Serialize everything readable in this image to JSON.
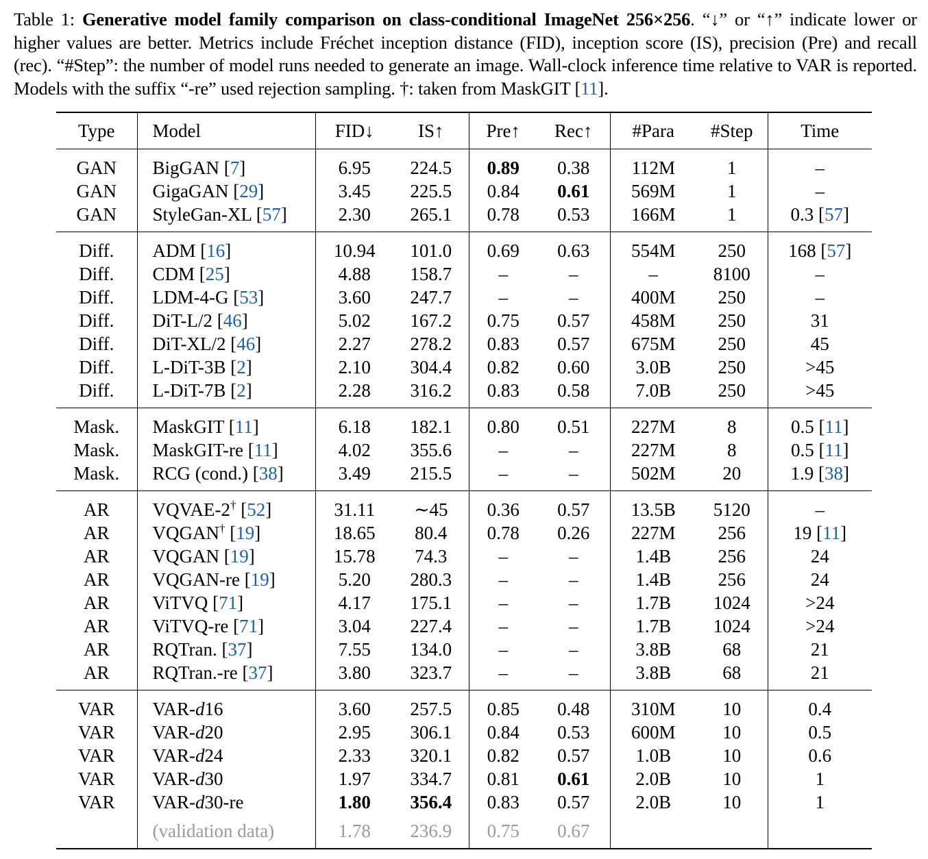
{
  "caption": {
    "label": "Table 1:",
    "bold_title": "Generative model family comparison on class-conditional ImageNet 256×256",
    "text_1": ". “↓” or “↑” indicate lower or higher values are better. Metrics include Fréchet inception distance (FID), inception score (IS), precision (Pre) and recall (rec). “#Step”: the number of model runs needed to generate an image. Wall-clock inference time relative to VAR is reported. Models with the suffix “-re” used rejection sampling. †: taken from MaskGIT [",
    "ref": "11",
    "text_2": "]."
  },
  "table": {
    "headers": [
      "Type",
      "Model",
      "FID↓",
      "IS↑",
      "Pre↑",
      "Rec↑",
      "#Para",
      "#Step",
      "Time"
    ],
    "groups": [
      {
        "rows": [
          {
            "type": "GAN",
            "model": "BigGAN",
            "ref": "7",
            "fid": "6.95",
            "is": "224.5",
            "pre": "0.89",
            "rec": "0.38",
            "para": "112M",
            "step": "1",
            "time": "–",
            "time_ref": ""
          },
          {
            "type": "GAN",
            "model": "GigaGAN",
            "ref": "29",
            "fid": "3.45",
            "is": "225.5",
            "pre": "0.84",
            "rec": "0.61",
            "para": "569M",
            "step": "1",
            "time": "–",
            "time_ref": ""
          },
          {
            "type": "GAN",
            "model": "StyleGan-XL",
            "ref": "57",
            "fid": "2.30",
            "is": "265.1",
            "pre": "0.78",
            "rec": "0.53",
            "para": "166M",
            "step": "1",
            "time": "0.3",
            "time_ref": "57"
          }
        ]
      },
      {
        "rows": [
          {
            "type": "Diff.",
            "model": "ADM",
            "ref": "16",
            "fid": "10.94",
            "is": "101.0",
            "pre": "0.69",
            "rec": "0.63",
            "para": "554M",
            "step": "250",
            "time": "168",
            "time_ref": "57"
          },
          {
            "type": "Diff.",
            "model": "CDM",
            "ref": "25",
            "fid": "4.88",
            "is": "158.7",
            "pre": "–",
            "rec": "–",
            "para": "–",
            "step": "8100",
            "time": "–",
            "time_ref": ""
          },
          {
            "type": "Diff.",
            "model": "LDM-4-G",
            "ref": "53",
            "fid": "3.60",
            "is": "247.7",
            "pre": "–",
            "rec": "–",
            "para": "400M",
            "step": "250",
            "time": "–",
            "time_ref": ""
          },
          {
            "type": "Diff.",
            "model": "DiT-L/2",
            "ref": "46",
            "fid": "5.02",
            "is": "167.2",
            "pre": "0.75",
            "rec": "0.57",
            "para": "458M",
            "step": "250",
            "time": "31",
            "time_ref": ""
          },
          {
            "type": "Diff.",
            "model": "DiT-XL/2",
            "ref": "46",
            "fid": "2.27",
            "is": "278.2",
            "pre": "0.83",
            "rec": "0.57",
            "para": "675M",
            "step": "250",
            "time": "45",
            "time_ref": ""
          },
          {
            "type": "Diff.",
            "model": "L-DiT-3B",
            "ref": "2",
            "fid": "2.10",
            "is": "304.4",
            "pre": "0.82",
            "rec": "0.60",
            "para": "3.0B",
            "step": "250",
            "time": ">45",
            "time_ref": ""
          },
          {
            "type": "Diff.",
            "model": "L-DiT-7B",
            "ref": "2",
            "fid": "2.28",
            "is": "316.2",
            "pre": "0.83",
            "rec": "0.58",
            "para": "7.0B",
            "step": "250",
            "time": ">45",
            "time_ref": ""
          }
        ]
      },
      {
        "rows": [
          {
            "type": "Mask.",
            "model": "MaskGIT",
            "ref": "11",
            "fid": "6.18",
            "is": "182.1",
            "pre": "0.80",
            "rec": "0.51",
            "para": "227M",
            "step": "8",
            "time": "0.5",
            "time_ref": "11"
          },
          {
            "type": "Mask.",
            "model": "MaskGIT-re",
            "ref": "11",
            "fid": "4.02",
            "is": "355.6",
            "pre": "–",
            "rec": "–",
            "para": "227M",
            "step": "8",
            "time": "0.5",
            "time_ref": "11"
          },
          {
            "type": "Mask.",
            "model": "RCG (cond.)",
            "ref": "38",
            "fid": "3.49",
            "is": "215.5",
            "pre": "–",
            "rec": "–",
            "para": "502M",
            "step": "20",
            "time": "1.9",
            "time_ref": "38"
          }
        ]
      },
      {
        "rows": [
          {
            "type": "AR",
            "model": "VQVAE-2",
            "dagger": "†",
            "ref": "52",
            "fid": "31.11",
            "is": "∼45",
            "pre": "0.36",
            "rec": "0.57",
            "para": "13.5B",
            "step": "5120",
            "time": "–",
            "time_ref": ""
          },
          {
            "type": "AR",
            "model": "VQGAN",
            "dagger": "†",
            "ref": "19",
            "fid": "18.65",
            "is": "80.4",
            "pre": "0.78",
            "rec": "0.26",
            "para": "227M",
            "step": "256",
            "time": "19",
            "time_ref": "11"
          },
          {
            "type": "AR",
            "model": "VQGAN",
            "ref": "19",
            "fid": "15.78",
            "is": "74.3",
            "pre": "–",
            "rec": "–",
            "para": "1.4B",
            "step": "256",
            "time": "24",
            "time_ref": ""
          },
          {
            "type": "AR",
            "model": "VQGAN-re",
            "ref": "19",
            "fid": "5.20",
            "is": "280.3",
            "pre": "–",
            "rec": "–",
            "para": "1.4B",
            "step": "256",
            "time": "24",
            "time_ref": ""
          },
          {
            "type": "AR",
            "model": "ViTVQ",
            "ref": "71",
            "fid": "4.17",
            "is": "175.1",
            "pre": "–",
            "rec": "–",
            "para": "1.7B",
            "step": "1024",
            "time": ">24",
            "time_ref": ""
          },
          {
            "type": "AR",
            "model": "ViTVQ-re",
            "ref": "71",
            "fid": "3.04",
            "is": "227.4",
            "pre": "–",
            "rec": "–",
            "para": "1.7B",
            "step": "1024",
            "time": ">24",
            "time_ref": ""
          },
          {
            "type": "AR",
            "model": "RQTran.",
            "ref": "37",
            "fid": "7.55",
            "is": "134.0",
            "pre": "–",
            "rec": "–",
            "para": "3.8B",
            "step": "68",
            "time": "21",
            "time_ref": ""
          },
          {
            "type": "AR",
            "model": "RQTran.-re",
            "ref": "37",
            "fid": "3.80",
            "is": "323.7",
            "pre": "–",
            "rec": "–",
            "para": "3.8B",
            "step": "68",
            "time": "21",
            "time_ref": ""
          }
        ]
      },
      {
        "rows": [
          {
            "type": "VAR",
            "model_prefix": "VAR-",
            "model_italic": "d",
            "model_suffix": "16",
            "fid": "3.60",
            "is": "257.5",
            "pre": "0.85",
            "rec": "0.48",
            "para": "310M",
            "step": "10",
            "time": "0.4",
            "time_ref": ""
          },
          {
            "type": "VAR",
            "model_prefix": "VAR-",
            "model_italic": "d",
            "model_suffix": "20",
            "fid": "2.95",
            "is": "306.1",
            "pre": "0.84",
            "rec": "0.53",
            "para": "600M",
            "step": "10",
            "time": "0.5",
            "time_ref": ""
          },
          {
            "type": "VAR",
            "model_prefix": "VAR-",
            "model_italic": "d",
            "model_suffix": "24",
            "fid": "2.33",
            "is": "320.1",
            "pre": "0.82",
            "rec": "0.57",
            "para": "1.0B",
            "step": "10",
            "time": "0.6",
            "time_ref": ""
          },
          {
            "type": "VAR",
            "model_prefix": "VAR-",
            "model_italic": "d",
            "model_suffix": "30",
            "fid": "1.97",
            "is": "334.7",
            "pre": "0.81",
            "rec": "0.61",
            "para": "2.0B",
            "step": "10",
            "time": "1",
            "time_ref": ""
          },
          {
            "type": "VAR",
            "model_prefix": "VAR-",
            "model_italic": "d",
            "model_suffix": "30-re",
            "fid": "1.80",
            "is": "356.4",
            "pre": "0.83",
            "rec": "0.57",
            "para": "2.0B",
            "step": "10",
            "time": "1",
            "time_ref": ""
          }
        ]
      }
    ],
    "validation_row": {
      "type": "",
      "model": "(validation data)",
      "fid": "1.78",
      "is": "236.9",
      "pre": "0.75",
      "rec": "0.67",
      "para": "",
      "step": "",
      "time": ""
    }
  }
}
